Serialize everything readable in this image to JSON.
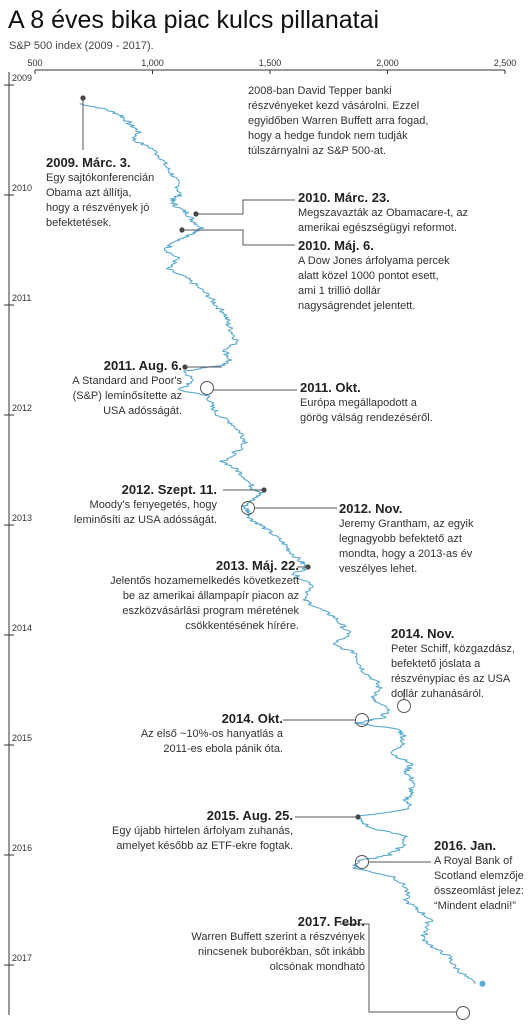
{
  "title": "A 8 éves bika piac kulcs pillanatai",
  "subtitle": "S&P 500 index (2009 - 2017).",
  "intro": [
    "2008-ban David Tepper banki",
    "részvényeket kezd vásárolni. Ezzel",
    "egyidőben Warren Buffett arra fogad,",
    "hogy a hedge fundok nem tudják",
    "túlszárnyalni az S&P 500-at."
  ],
  "colors": {
    "line": "#5aa9cf",
    "axis": "#333333",
    "leader": "#555555"
  },
  "chart_data": {
    "type": "line",
    "orientation": "vertical-time",
    "title": "A 8 éves bika piac kulcs pillanatai",
    "subtitle": "S&P 500 index (2009 - 2017).",
    "value_axis": {
      "ticks": [
        500,
        1000,
        1500,
        2000,
        2500
      ],
      "tick_labels": [
        "500",
        "1,000",
        "1,500",
        "2,000",
        "2,500"
      ],
      "range": [
        500,
        2500
      ]
    },
    "time_axis": {
      "ticks": [
        2009,
        2010,
        2011,
        2012,
        2013,
        2014,
        2015,
        2016,
        2017
      ],
      "range": [
        2009.0,
        2017.2
      ]
    },
    "series": [
      {
        "values": [
          [
            2009.17,
            690
          ],
          [
            2009.22,
            800
          ],
          [
            2009.28,
            870
          ],
          [
            2009.35,
            900
          ],
          [
            2009.42,
            940
          ],
          [
            2009.5,
            920
          ],
          [
            2009.58,
            1000
          ],
          [
            2009.67,
            1040
          ],
          [
            2009.75,
            1060
          ],
          [
            2009.83,
            1090
          ],
          [
            2009.92,
            1110
          ],
          [
            2010.0,
            1115
          ],
          [
            2010.05,
            1080
          ],
          [
            2010.1,
            1100
          ],
          [
            2010.17,
            1150
          ],
          [
            2010.23,
            1170
          ],
          [
            2010.3,
            1210
          ],
          [
            2010.35,
            1180
          ],
          [
            2010.42,
            1090
          ],
          [
            2010.5,
            1060
          ],
          [
            2010.58,
            1110
          ],
          [
            2010.67,
            1060
          ],
          [
            2010.75,
            1140
          ],
          [
            2010.83,
            1190
          ],
          [
            2010.92,
            1240
          ],
          [
            2011.0,
            1270
          ],
          [
            2011.08,
            1310
          ],
          [
            2011.17,
            1320
          ],
          [
            2011.25,
            1340
          ],
          [
            2011.33,
            1360
          ],
          [
            2011.42,
            1310
          ],
          [
            2011.5,
            1330
          ],
          [
            2011.55,
            1290
          ],
          [
            2011.6,
            1140
          ],
          [
            2011.7,
            1170
          ],
          [
            2011.77,
            1110
          ],
          [
            2011.83,
            1240
          ],
          [
            2011.92,
            1250
          ],
          [
            2012.0,
            1280
          ],
          [
            2012.08,
            1340
          ],
          [
            2012.17,
            1380
          ],
          [
            2012.25,
            1400
          ],
          [
            2012.33,
            1360
          ],
          [
            2012.42,
            1300
          ],
          [
            2012.5,
            1360
          ],
          [
            2012.58,
            1400
          ],
          [
            2012.67,
            1430
          ],
          [
            2012.7,
            1460
          ],
          [
            2012.75,
            1440
          ],
          [
            2012.83,
            1390
          ],
          [
            2012.88,
            1410
          ],
          [
            2012.95,
            1420
          ],
          [
            2013.0,
            1460
          ],
          [
            2013.08,
            1510
          ],
          [
            2013.17,
            1560
          ],
          [
            2013.25,
            1590
          ],
          [
            2013.33,
            1630
          ],
          [
            2013.39,
            1660
          ],
          [
            2013.45,
            1600
          ],
          [
            2013.55,
            1690
          ],
          [
            2013.67,
            1640
          ],
          [
            2013.75,
            1700
          ],
          [
            2013.83,
            1770
          ],
          [
            2013.92,
            1810
          ],
          [
            2014.0,
            1840
          ],
          [
            2014.08,
            1760
          ],
          [
            2014.17,
            1870
          ],
          [
            2014.25,
            1880
          ],
          [
            2014.33,
            1900
          ],
          [
            2014.42,
            1950
          ],
          [
            2014.5,
            1970
          ],
          [
            2014.58,
            1930
          ],
          [
            2014.67,
            2000
          ],
          [
            2014.75,
            1980
          ],
          [
            2014.8,
            1870
          ],
          [
            2014.86,
            2050
          ],
          [
            2014.92,
            2070
          ],
          [
            2015.0,
            2060
          ],
          [
            2015.08,
            2020
          ],
          [
            2015.17,
            2100
          ],
          [
            2015.25,
            2080
          ],
          [
            2015.33,
            2110
          ],
          [
            2015.42,
            2100
          ],
          [
            2015.5,
            2080
          ],
          [
            2015.58,
            2100
          ],
          [
            2015.65,
            1870
          ],
          [
            2015.75,
            1920
          ],
          [
            2015.83,
            2080
          ],
          [
            2015.92,
            2060
          ],
          [
            2016.0,
            2010
          ],
          [
            2016.05,
            1880
          ],
          [
            2016.12,
            1860
          ],
          [
            2016.2,
            2030
          ],
          [
            2016.3,
            2080
          ],
          [
            2016.42,
            2080
          ],
          [
            2016.5,
            2130
          ],
          [
            2016.58,
            2180
          ],
          [
            2016.67,
            2170
          ],
          [
            2016.75,
            2150
          ],
          [
            2016.85,
            2200
          ],
          [
            2016.92,
            2260
          ],
          [
            2017.0,
            2280
          ],
          [
            2017.1,
            2330
          ],
          [
            2017.17,
            2370
          ]
        ]
      }
    ]
  },
  "events": [
    {
      "date": "2009. Márc. 3.",
      "lines": [
        "Egy sajtókonferencián",
        "Obama azt állítja,",
        "hogy a részvények jó",
        "befektetések."
      ]
    },
    {
      "date": "2010. Márc. 23.",
      "lines": [
        "Megszavazták az Obamacare-t, az",
        "amerikai egészségügyi reformot."
      ]
    },
    {
      "date": "2010. Máj. 6.",
      "lines": [
        "A Dow Jones árfolyama percek",
        "alatt közel 1000 pontot esett,",
        "ami 1 trillió dollár",
        "nagyságrendet jelentett."
      ]
    },
    {
      "date": "2011. Aug. 6.",
      "lines": [
        "A Standard and Poor's",
        "(S&P) leminősítette az",
        "USA adósságát."
      ]
    },
    {
      "date": "2011. Okt.",
      "lines": [
        "Európa megállapodott a",
        "görög válság rendezéséről."
      ]
    },
    {
      "date": "2012.  Szept. 11.",
      "lines": [
        "Moody's fenyegetés, hogy",
        "leminősíti az USA adósságát."
      ]
    },
    {
      "date": "2012. Nov.",
      "lines": [
        "Jeremy Grantham, az egyik",
        "legnagyobb befektető azt",
        "mondta, hogy a 2013-as év",
        "veszélyes lehet."
      ]
    },
    {
      "date": "2013. Máj. 22.",
      "lines": [
        "Jelentős hozamemelkedés következett",
        "be az amerikai állampapír piacon az",
        "eszközvásárlási program méretének",
        "csökkentésének hírére."
      ]
    },
    {
      "date": "2014. Nov.",
      "lines": [
        "Peter Schiff, közgazdász,",
        "befektető jóslata a",
        "részvénypiac és az USA",
        "dollár zuhanásáról."
      ]
    },
    {
      "date": "2014. Okt.",
      "lines": [
        "Az első ~10%-os hanyatlás a",
        "2011-es ebola pánik óta."
      ]
    },
    {
      "date": "2015. Aug. 25.",
      "lines": [
        "Egy újabb hirtelen árfolyam zuhanás,",
        "amelyet később az ETF-ekre fogtak."
      ]
    },
    {
      "date": "2016. Jan.",
      "lines": [
        "A Royal Bank of",
        "Scotland elemzője",
        "összeomlást jelez:",
        "“Mindent eladni!”"
      ]
    },
    {
      "date": "2017. Febr.",
      "lines": [
        "Warren Buffett szerint a részvények",
        "nincsenek buborékban, sőt inkább",
        "olcsónak mondható"
      ]
    }
  ]
}
